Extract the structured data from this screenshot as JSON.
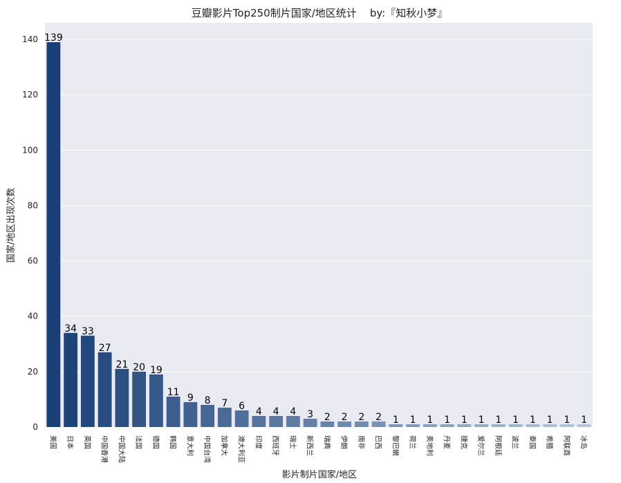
{
  "chart_data": {
    "type": "bar",
    "title": "豆瓣影片Top250制片国家/地区统计    by:『知秋小梦』",
    "xlabel": "影片制片国家/地区",
    "ylabel": "国家/地区出现次数",
    "ylim": [
      0,
      146
    ],
    "yticks": [
      0,
      20,
      40,
      60,
      80,
      100,
      120,
      140
    ],
    "grid": true,
    "categories": [
      "美国",
      "日本",
      "英国",
      "中国香港",
      "中国大陆",
      "法国",
      "德国",
      "韩国",
      "意大利",
      "中国台湾",
      "加拿大",
      "澳大利亚",
      "印度",
      "西班牙",
      "瑞士",
      "新西兰",
      "瑞典",
      "伊朗",
      "南非",
      "巴西",
      "黎巴嫩",
      "荷兰",
      "奥地利",
      "丹麦",
      "捷克",
      "爱尔兰",
      "阿根廷",
      "波兰",
      "泰国",
      "希腊",
      "阿联酋",
      "冰岛"
    ],
    "values": [
      139,
      34,
      33,
      27,
      21,
      20,
      19,
      11,
      9,
      8,
      7,
      6,
      4,
      4,
      4,
      3,
      2,
      2,
      2,
      2,
      1,
      1,
      1,
      1,
      1,
      1,
      1,
      1,
      1,
      1,
      1,
      1
    ],
    "colors": {
      "background": "#eaeaf2",
      "grid": "#ffffff",
      "palette_dark": "#08306b",
      "palette_light": "#deebf7"
    }
  }
}
